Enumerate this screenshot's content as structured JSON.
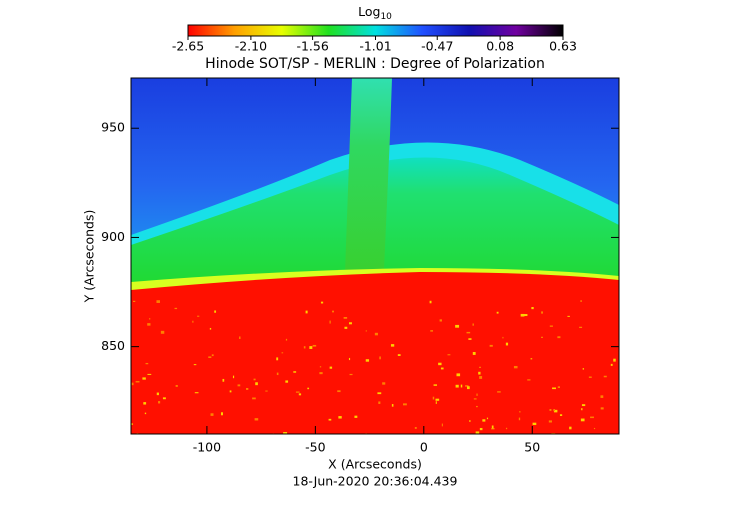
{
  "chart_data": {
    "type": "heatmap",
    "title": "Hinode SOT/SP - MERLIN : Degree of Polarization",
    "subtitle": "18-Jun-2020 20:36:04.439",
    "x_label": "X (Arcseconds)",
    "y_label": "Y (Arcseconds)",
    "xlim": [
      -135,
      90
    ],
    "xticks": [
      -100,
      -50,
      0,
      50
    ],
    "ylim": [
      810,
      973
    ],
    "yticks": [
      850,
      900,
      950
    ],
    "colorbar": {
      "title": "Log",
      "title_subscript": "10",
      "lim": [
        -2.65,
        0.63
      ],
      "colormap": [
        "#ff0000",
        "#ffa000",
        "#e8ff00",
        "#20e020",
        "#00e0e0",
        "#2050ff",
        "#1010b0",
        "#7000a0",
        "#000000"
      ],
      "ticks": [
        -2.65,
        {
          "value": -2.1,
          "label": "-2.10"
        },
        -1.56,
        -1.01,
        -0.47,
        0.08,
        0.63
      ]
    }
  }
}
